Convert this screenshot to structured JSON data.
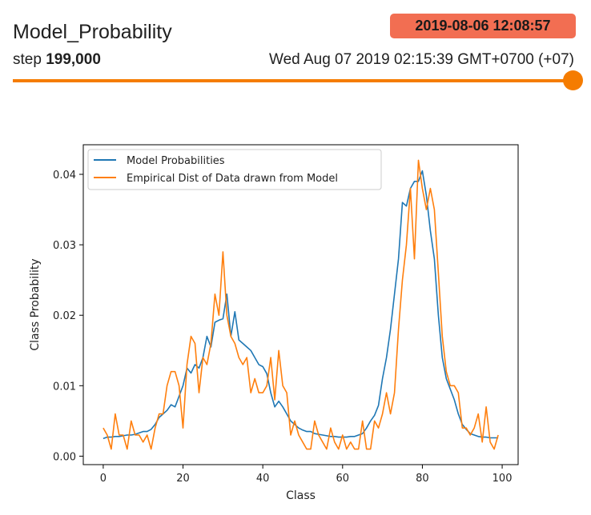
{
  "card": {
    "title": "Model_Probability",
    "step_label": "step",
    "step_value": "199,000",
    "wall_time": "Wed Aug 07 2019 02:15:39 GMT+0700 (+07)",
    "tooltip_time": "2019-08-06 12:08:57",
    "slider_fraction": 1.0,
    "accent_color": "#f57c00",
    "badge_color": "#f26e52"
  },
  "chart_data": {
    "type": "line",
    "xlabel": "Class",
    "ylabel": "Class Probability",
    "xlim": [
      -5,
      104
    ],
    "ylim": [
      -0.0012,
      0.0442
    ],
    "xticks": [
      0,
      20,
      40,
      60,
      80,
      100
    ],
    "yticks": [
      0.0,
      0.01,
      0.02,
      0.03,
      0.04
    ],
    "ytick_labels": [
      "0.00",
      "0.01",
      "0.02",
      "0.03",
      "0.04"
    ],
    "legend_position": "top-left",
    "x": [
      0,
      1,
      2,
      3,
      4,
      5,
      6,
      7,
      8,
      9,
      10,
      11,
      12,
      13,
      14,
      15,
      16,
      17,
      18,
      19,
      20,
      21,
      22,
      23,
      24,
      25,
      26,
      27,
      28,
      29,
      30,
      31,
      32,
      33,
      34,
      35,
      36,
      37,
      38,
      39,
      40,
      41,
      42,
      43,
      44,
      45,
      46,
      47,
      48,
      49,
      50,
      51,
      52,
      53,
      54,
      55,
      56,
      57,
      58,
      59,
      60,
      61,
      62,
      63,
      64,
      65,
      66,
      67,
      68,
      69,
      70,
      71,
      72,
      73,
      74,
      75,
      76,
      77,
      78,
      79,
      80,
      81,
      82,
      83,
      84,
      85,
      86,
      87,
      88,
      89,
      90,
      91,
      92,
      93,
      94,
      95,
      96,
      97,
      98,
      99
    ],
    "series": [
      {
        "name": "Model Probabilities",
        "color": "#1f77b4",
        "values": [
          0.0025,
          0.0027,
          0.0027,
          0.0028,
          0.0028,
          0.0029,
          0.003,
          0.003,
          0.0031,
          0.0033,
          0.0035,
          0.0035,
          0.0038,
          0.0045,
          0.0055,
          0.006,
          0.0065,
          0.0073,
          0.007,
          0.0085,
          0.01,
          0.0125,
          0.0118,
          0.013,
          0.0125,
          0.014,
          0.017,
          0.0155,
          0.019,
          0.0193,
          0.0195,
          0.023,
          0.017,
          0.0205,
          0.0165,
          0.016,
          0.0155,
          0.015,
          0.014,
          0.013,
          0.0127,
          0.0117,
          0.009,
          0.007,
          0.0078,
          0.007,
          0.006,
          0.005,
          0.0045,
          0.004,
          0.0037,
          0.0035,
          0.0035,
          0.0032,
          0.0031,
          0.003,
          0.0029,
          0.0028,
          0.0028,
          0.0027,
          0.0027,
          0.0027,
          0.0028,
          0.0028,
          0.003,
          0.0032,
          0.004,
          0.005,
          0.0058,
          0.0072,
          0.011,
          0.014,
          0.018,
          0.023,
          0.028,
          0.036,
          0.0355,
          0.038,
          0.039,
          0.039,
          0.0405,
          0.037,
          0.032,
          0.028,
          0.02,
          0.014,
          0.011,
          0.0095,
          0.008,
          0.006,
          0.0045,
          0.0038,
          0.0032,
          0.003,
          0.0028,
          0.0027,
          0.0027,
          0.0026,
          0.0026,
          0.0026
        ]
      },
      {
        "name": "Empirical Dist of Data drawn from Model",
        "color": "#ff7f0e",
        "values": [
          0.004,
          0.003,
          0.001,
          0.006,
          0.003,
          0.003,
          0.001,
          0.005,
          0.003,
          0.003,
          0.002,
          0.003,
          0.001,
          0.004,
          0.006,
          0.006,
          0.01,
          0.012,
          0.012,
          0.01,
          0.004,
          0.013,
          0.017,
          0.016,
          0.009,
          0.014,
          0.013,
          0.016,
          0.023,
          0.02,
          0.029,
          0.02,
          0.017,
          0.016,
          0.014,
          0.013,
          0.014,
          0.009,
          0.011,
          0.009,
          0.009,
          0.01,
          0.014,
          0.008,
          0.015,
          0.01,
          0.009,
          0.003,
          0.005,
          0.003,
          0.002,
          0.001,
          0.001,
          0.005,
          0.003,
          0.002,
          0.001,
          0.004,
          0.002,
          0.001,
          0.003,
          0.001,
          0.002,
          0.001,
          0.001,
          0.005,
          0.001,
          0.001,
          0.005,
          0.004,
          0.006,
          0.009,
          0.006,
          0.009,
          0.018,
          0.025,
          0.03,
          0.038,
          0.028,
          0.042,
          0.038,
          0.035,
          0.038,
          0.035,
          0.026,
          0.017,
          0.012,
          0.01,
          0.01,
          0.009,
          0.004,
          0.004,
          0.003,
          0.004,
          0.006,
          0.002,
          0.007,
          0.002,
          0.001,
          0.003
        ]
      }
    ]
  }
}
